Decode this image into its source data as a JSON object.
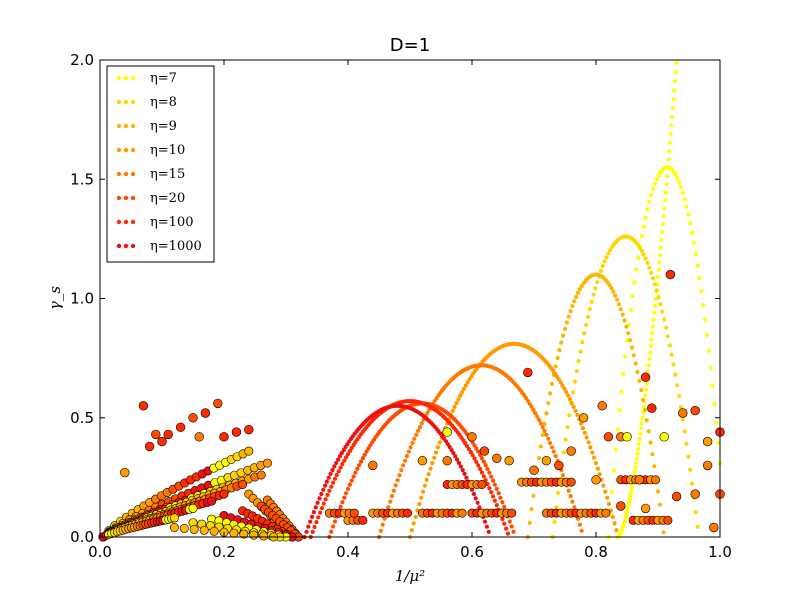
{
  "chart_data": {
    "type": "scatter",
    "title": "D=1",
    "xlabel": "1/μ²",
    "ylabel": "γ_s",
    "xlim": [
      0.0,
      1.0
    ],
    "ylim": [
      0.0,
      2.0
    ],
    "xticks": [
      "0.0",
      "0.2",
      "0.4",
      "0.6",
      "0.8",
      "1.0"
    ],
    "yticks": [
      "0.0",
      "0.5",
      "1.0",
      "1.5",
      "2.0"
    ],
    "grid": false,
    "legend_position": "upper-left",
    "series": [
      {
        "name": "η=7",
        "legend_label": "η=7",
        "color": "#ffff00",
        "curve": {
          "x_start": 0.82,
          "x_end": 1.0,
          "peak_x": 0.915,
          "peak_y": 1.55,
          "steep_x": 0.835,
          "steep_top": 2.0
        }
      },
      {
        "name": "η=8",
        "legend_label": "η=8",
        "color": "#ffd700",
        "curve": {
          "x_start": 0.73,
          "x_end": 1.0,
          "peak_x": 0.848,
          "peak_y": 1.26
        }
      },
      {
        "name": "η=9",
        "legend_label": "η=9",
        "color": "#ffb400",
        "curve": {
          "x_start": 0.69,
          "x_end": 1.0,
          "peak_x": 0.8,
          "peak_y": 1.1
        }
      },
      {
        "name": "η=10",
        "legend_label": "η=10",
        "color": "#ff9a00",
        "curve": {
          "x_start": 0.5,
          "x_end": 0.84,
          "peak_x": 0.668,
          "peak_y": 0.81
        }
      },
      {
        "name": "η=15",
        "legend_label": "η=15",
        "color": "#ff7800",
        "curve": {
          "x_start": 0.45,
          "x_end": 0.78,
          "peak_x": 0.615,
          "peak_y": 0.72
        }
      },
      {
        "name": "η=20",
        "legend_label": "η=20",
        "color": "#ff4b00",
        "curve": {
          "x_start": 0.37,
          "x_end": 0.7,
          "peak_x": 0.52,
          "peak_y": 0.56
        }
      },
      {
        "name": "η=100",
        "legend_label": "η=100",
        "color": "#ff2800",
        "curve": {
          "x_start": 0.34,
          "x_end": 0.66,
          "peak_x": 0.5,
          "peak_y": 0.57
        }
      },
      {
        "name": "η=1000",
        "legend_label": "η=1000",
        "color": "#ee1010",
        "curve": {
          "x_start": 0.33,
          "x_end": 0.63,
          "peak_x": 0.48,
          "peak_y": 0.55
        }
      }
    ],
    "large_markers": [
      {
        "x": 0.07,
        "y": 0.55,
        "c": 6
      },
      {
        "x": 0.09,
        "y": 0.43,
        "c": 5
      },
      {
        "x": 0.11,
        "y": 0.43,
        "c": 6
      },
      {
        "x": 0.13,
        "y": 0.46,
        "c": 6
      },
      {
        "x": 0.15,
        "y": 0.5,
        "c": 5
      },
      {
        "x": 0.17,
        "y": 0.52,
        "c": 6
      },
      {
        "x": 0.19,
        "y": 0.56,
        "c": 5
      },
      {
        "x": 0.2,
        "y": 0.42,
        "c": 6
      },
      {
        "x": 0.22,
        "y": 0.44,
        "c": 6
      },
      {
        "x": 0.24,
        "y": 0.45,
        "c": 6
      },
      {
        "x": 0.08,
        "y": 0.38,
        "c": 6
      },
      {
        "x": 0.1,
        "y": 0.4,
        "c": 6
      },
      {
        "x": 0.16,
        "y": 0.42,
        "c": 4
      },
      {
        "x": 0.04,
        "y": 0.27,
        "c": 3
      },
      {
        "x": 0.44,
        "y": 0.3,
        "c": 4
      },
      {
        "x": 0.52,
        "y": 0.32,
        "c": 3
      },
      {
        "x": 0.56,
        "y": 0.32,
        "c": 4
      },
      {
        "x": 0.56,
        "y": 0.44,
        "c": 0
      },
      {
        "x": 0.6,
        "y": 0.42,
        "c": 4
      },
      {
        "x": 0.62,
        "y": 0.36,
        "c": 5
      },
      {
        "x": 0.64,
        "y": 0.33,
        "c": 4
      },
      {
        "x": 0.66,
        "y": 0.32,
        "c": 3
      },
      {
        "x": 0.69,
        "y": 0.69,
        "c": 6
      },
      {
        "x": 0.7,
        "y": 0.28,
        "c": 4
      },
      {
        "x": 0.72,
        "y": 0.32,
        "c": 3
      },
      {
        "x": 0.74,
        "y": 0.3,
        "c": 5
      },
      {
        "x": 0.76,
        "y": 0.36,
        "c": 4
      },
      {
        "x": 0.78,
        "y": 0.5,
        "c": 3
      },
      {
        "x": 0.81,
        "y": 0.55,
        "c": 4
      },
      {
        "x": 0.82,
        "y": 0.42,
        "c": 5
      },
      {
        "x": 0.84,
        "y": 0.42,
        "c": 4
      },
      {
        "x": 0.85,
        "y": 0.42,
        "c": 0
      },
      {
        "x": 0.88,
        "y": 0.67,
        "c": 6
      },
      {
        "x": 0.89,
        "y": 0.54,
        "c": 6
      },
      {
        "x": 0.91,
        "y": 0.42,
        "c": 0
      },
      {
        "x": 0.92,
        "y": 1.1,
        "c": 6
      },
      {
        "x": 0.94,
        "y": 0.52,
        "c": 4
      },
      {
        "x": 0.96,
        "y": 0.53,
        "c": 5
      },
      {
        "x": 0.96,
        "y": 0.18,
        "c": 4
      },
      {
        "x": 0.98,
        "y": 0.4,
        "c": 3
      },
      {
        "x": 0.98,
        "y": 0.3,
        "c": 4
      },
      {
        "x": 1.0,
        "y": 0.44,
        "c": 6
      },
      {
        "x": 1.0,
        "y": 0.18,
        "c": 5
      },
      {
        "x": 0.99,
        "y": 0.04,
        "c": 4
      },
      {
        "x": 0.93,
        "y": 0.17,
        "c": 5
      },
      {
        "x": 0.87,
        "y": 0.24,
        "c": 4
      },
      {
        "x": 0.84,
        "y": 0.13,
        "c": 5
      },
      {
        "x": 0.8,
        "y": 0.24,
        "c": 3
      },
      {
        "x": 0.88,
        "y": 0.12,
        "c": 3
      }
    ],
    "marker_bands": [
      {
        "x_start": 0.44,
        "x_end": 0.5,
        "y": 0.1,
        "step": 0.008
      },
      {
        "x_start": 0.52,
        "x_end": 0.59,
        "y": 0.1,
        "step": 0.008
      },
      {
        "x_start": 0.6,
        "x_end": 0.67,
        "y": 0.1,
        "step": 0.008
      },
      {
        "x_start": 0.56,
        "x_end": 0.62,
        "y": 0.22,
        "step": 0.008
      },
      {
        "x_start": 0.68,
        "x_end": 0.76,
        "y": 0.23,
        "step": 0.008
      },
      {
        "x_start": 0.72,
        "x_end": 0.82,
        "y": 0.1,
        "step": 0.008
      },
      {
        "x_start": 0.84,
        "x_end": 0.9,
        "y": 0.24,
        "step": 0.008
      },
      {
        "x_start": 0.86,
        "x_end": 0.92,
        "y": 0.07,
        "step": 0.008
      },
      {
        "x_start": 0.4,
        "x_end": 0.43,
        "y": 0.07,
        "step": 0.008
      },
      {
        "x_start": 0.37,
        "x_end": 0.41,
        "y": 0.1,
        "step": 0.008
      }
    ],
    "cluster_fans": [
      {
        "y_end": 0.36,
        "x_end": 0.24,
        "x_tail": 0.31
      },
      {
        "y_end": 0.31,
        "x_end": 0.27,
        "x_tail": 0.32
      },
      {
        "y_end": 0.26,
        "x_end": 0.26,
        "x_tail": 0.32
      },
      {
        "y_end": 0.22,
        "x_end": 0.23,
        "x_tail": 0.31
      },
      {
        "y_end": 0.18,
        "x_end": 0.2,
        "x_tail": 0.31
      },
      {
        "y_end": 0.15,
        "x_end": 0.18,
        "x_tail": 0.3
      },
      {
        "y_end": 0.12,
        "x_end": 0.15,
        "x_tail": 0.29
      },
      {
        "y_end": 0.08,
        "x_end": 0.12,
        "x_tail": 0.28
      }
    ]
  }
}
